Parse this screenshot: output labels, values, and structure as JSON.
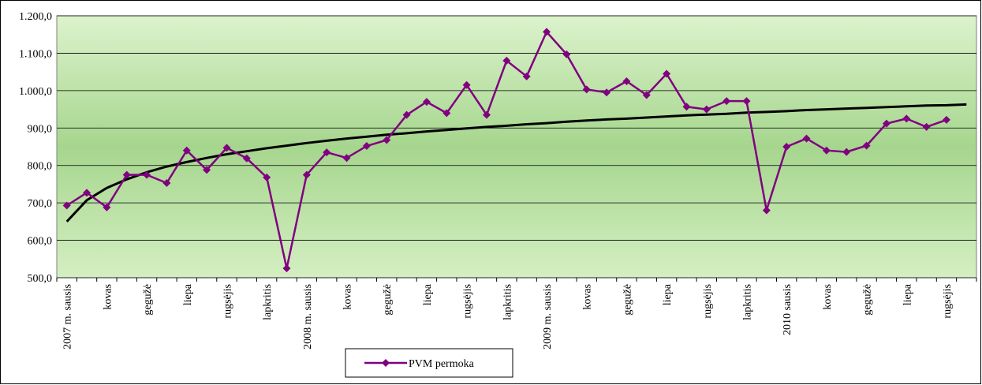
{
  "chart_data": {
    "type": "line",
    "categories": [
      "2007 m. sausis",
      null,
      "kovas",
      null,
      "gegužė",
      null,
      "liepa",
      null,
      "rugsėjis",
      null,
      "lapkritis",
      null,
      "2008 m. sausis",
      null,
      "kovas",
      null,
      "gegužė",
      null,
      "liepa",
      null,
      "rugsėjis",
      null,
      "lapkritis",
      null,
      "2009 m. sausis",
      null,
      "kovas",
      null,
      "gegužė",
      null,
      "liepa",
      null,
      "rugsėjis",
      null,
      "lapkritis",
      null,
      "2010 sausis",
      null,
      "kovas",
      null,
      "gegužė",
      null,
      "liepa",
      null,
      "rugsėjis",
      null
    ],
    "series": [
      {
        "name": "PVM permoka",
        "color": "#800080",
        "values": [
          693,
          727,
          688,
          775,
          775,
          753,
          840,
          788,
          847,
          819,
          768,
          525,
          775,
          835,
          820,
          852,
          868,
          935,
          970,
          940,
          1015,
          935,
          1080,
          1038,
          1157,
          1097,
          1003,
          995,
          1025,
          988,
          1045,
          957,
          950,
          972,
          972,
          680,
          850,
          872,
          840,
          836,
          853,
          912,
          925,
          903,
          922,
          null
        ]
      }
    ],
    "trendline": {
      "color": "#000000",
      "values": [
        650,
        707,
        740,
        763,
        782,
        797,
        809,
        820,
        830,
        838,
        846,
        853,
        860,
        866,
        872,
        877,
        882,
        886,
        891,
        895,
        899,
        903,
        906,
        910,
        913,
        917,
        920,
        923,
        925,
        928,
        931,
        934,
        936,
        938,
        941,
        943,
        945,
        948,
        950,
        952,
        954,
        956,
        958,
        960,
        961,
        963
      ]
    },
    "ylim": [
      500,
      1200
    ],
    "yticks": [
      {
        "value": 500,
        "label": "500,0"
      },
      {
        "value": 600,
        "label": "600,0"
      },
      {
        "value": 700,
        "label": "700,0"
      },
      {
        "value": 800,
        "label": "800,0"
      },
      {
        "value": 900,
        "label": "900,0"
      },
      {
        "value": 1000,
        "label": "1.000,0"
      },
      {
        "value": 1100,
        "label": "1.100,0"
      },
      {
        "value": 1200,
        "label": "1.200,0"
      }
    ],
    "grid": true,
    "legend": "bottom"
  }
}
